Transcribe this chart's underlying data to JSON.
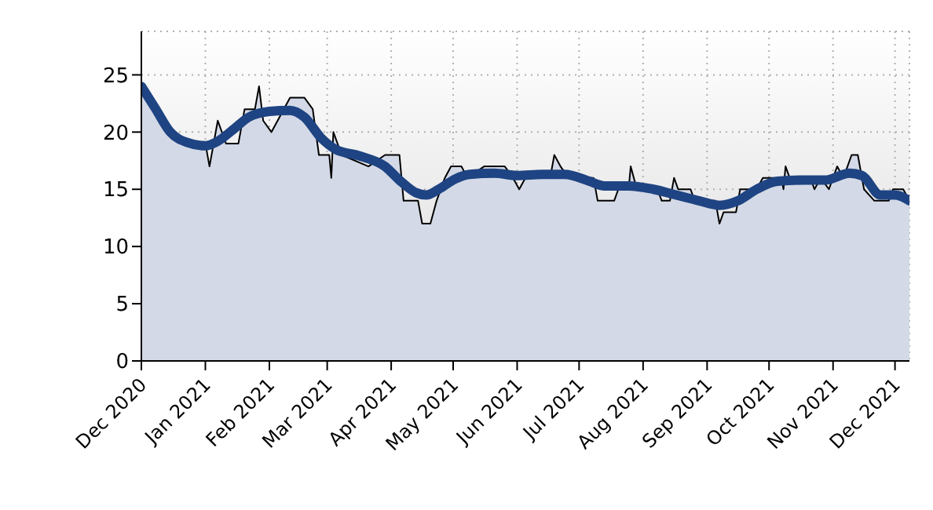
{
  "chart_data": {
    "type": "area",
    "xlim": [
      "2020-12-01",
      "2021-12-08"
    ],
    "xticks": [
      {
        "value": "2020-12-01",
        "label": "Dec 2020"
      },
      {
        "value": "2021-01-01",
        "label": "Jan 2021"
      },
      {
        "value": "2021-02-01",
        "label": "Feb 2021"
      },
      {
        "value": "2021-03-01",
        "label": "Mar 2021"
      },
      {
        "value": "2021-04-01",
        "label": "Apr 2021"
      },
      {
        "value": "2021-05-01",
        "label": "May 2021"
      },
      {
        "value": "2021-06-01",
        "label": "Jun 2021"
      },
      {
        "value": "2021-07-01",
        "label": "Jul 2021"
      },
      {
        "value": "2021-08-01",
        "label": "Aug 2021"
      },
      {
        "value": "2021-09-01",
        "label": "Sep 2021"
      },
      {
        "value": "2021-10-01",
        "label": "Oct 2021"
      },
      {
        "value": "2021-11-01",
        "label": "Nov 2021"
      },
      {
        "value": "2021-12-01",
        "label": "Dec 2021"
      }
    ],
    "ylim": [
      0,
      28.8
    ],
    "yticks": [
      0,
      5,
      10,
      15,
      20,
      25
    ],
    "grid": true,
    "series": [
      {
        "color": "#d3d9e6",
        "x": [
          "2020-12-01",
          "2020-12-08",
          "2020-12-14",
          "2020-12-23",
          "2021-01-01",
          "2021-01-03",
          "2021-01-07",
          "2021-01-11",
          "2021-01-17",
          "2021-01-20",
          "2021-01-25",
          "2021-01-27",
          "2021-01-29",
          "2021-02-02",
          "2021-02-05",
          "2021-02-11",
          "2021-02-18",
          "2021-02-22",
          "2021-02-25",
          "2021-03-02",
          "2021-03-03",
          "2021-03-04",
          "2021-03-08",
          "2021-03-21",
          "2021-03-29",
          "2021-04-05",
          "2021-04-07",
          "2021-04-14",
          "2021-04-16",
          "2021-04-20",
          "2021-04-23",
          "2021-04-27",
          "2021-04-30",
          "2021-05-05",
          "2021-05-08",
          "2021-05-16",
          "2021-05-26",
          "2021-05-30",
          "2021-06-02",
          "2021-06-05",
          "2021-06-17",
          "2021-06-19",
          "2021-06-22",
          "2021-06-26",
          "2021-07-08",
          "2021-07-10",
          "2021-07-18",
          "2021-07-20",
          "2021-07-25",
          "2021-07-26",
          "2021-07-29",
          "2021-08-08",
          "2021-08-10",
          "2021-08-14",
          "2021-08-16",
          "2021-08-18",
          "2021-08-24",
          "2021-08-26",
          "2021-09-05",
          "2021-09-07",
          "2021-09-09",
          "2021-09-15",
          "2021-09-17",
          "2021-09-25",
          "2021-09-28",
          "2021-10-07",
          "2021-10-08",
          "2021-10-09",
          "2021-10-11",
          "2021-10-21",
          "2021-10-23",
          "2021-10-26",
          "2021-10-30",
          "2021-11-03",
          "2021-11-06",
          "2021-11-10",
          "2021-11-13",
          "2021-11-16",
          "2021-11-21",
          "2021-11-28",
          "2021-11-30",
          "2021-12-05",
          "2021-12-08"
        ],
        "values": [
          24,
          22,
          20,
          19,
          19,
          17,
          21,
          19,
          19,
          22,
          22,
          24,
          21,
          20,
          21,
          23,
          23,
          22,
          18,
          18,
          16,
          20,
          18,
          17,
          18,
          18,
          14,
          14,
          12,
          12,
          14,
          16,
          17,
          17,
          16,
          17,
          17,
          16,
          15,
          16,
          16,
          18,
          17,
          16,
          16,
          14,
          14,
          15,
          15,
          17,
          15,
          15,
          14,
          14,
          16,
          15,
          15,
          14,
          14,
          12,
          13,
          13,
          15,
          15,
          16,
          16,
          15,
          17,
          16,
          16,
          15,
          16,
          15,
          17,
          16,
          18,
          18,
          15,
          14,
          14,
          15,
          15,
          14
        ]
      },
      {
        "type": "line",
        "color": "#1f4483",
        "x": [
          "2020-12-01",
          "2020-12-08",
          "2020-12-15",
          "2020-12-23",
          "2021-01-01",
          "2021-01-07",
          "2021-01-15",
          "2021-01-22",
          "2021-02-01",
          "2021-02-11",
          "2021-02-18",
          "2021-02-26",
          "2021-03-05",
          "2021-03-17",
          "2021-03-29",
          "2021-04-05",
          "2021-04-13",
          "2021-04-18",
          "2021-04-24",
          "2021-05-02",
          "2021-05-09",
          "2021-05-21",
          "2021-06-01",
          "2021-06-13",
          "2021-06-24",
          "2021-07-06",
          "2021-07-13",
          "2021-07-25",
          "2021-08-06",
          "2021-08-17",
          "2021-08-28",
          "2021-09-07",
          "2021-09-16",
          "2021-09-25",
          "2021-10-05",
          "2021-10-17",
          "2021-10-28",
          "2021-11-09",
          "2021-11-15",
          "2021-11-24",
          "2021-12-01",
          "2021-12-08"
        ],
        "values": [
          24,
          22,
          20,
          19.1,
          18.8,
          19.2,
          20.3,
          21.3,
          21.8,
          21.9,
          21.3,
          19.5,
          18.5,
          17.9,
          17,
          15.8,
          14.7,
          14.5,
          15,
          15.9,
          16.3,
          16.4,
          16.2,
          16.3,
          16.3,
          15.7,
          15.3,
          15.3,
          15,
          14.5,
          14,
          13.6,
          14,
          15,
          15.7,
          15.8,
          15.8,
          16.4,
          16.2,
          14.5,
          14.5,
          14
        ]
      }
    ]
  }
}
